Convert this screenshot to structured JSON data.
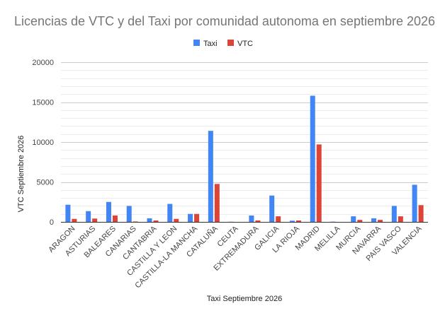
{
  "chart_data": {
    "type": "bar",
    "title": "Licencias de VTC y del Taxi por comunidad autonoma en septiembre 2026",
    "xlabel": "Taxi Septiembre 2026",
    "ylabel": "VTC Septiembre 2026",
    "ylim": [
      0,
      20000
    ],
    "yticks": [
      "0",
      "5000",
      "10000",
      "15000",
      "20000"
    ],
    "grid": true,
    "legend_position": "top",
    "categories": [
      "ARAGON",
      "ASTURIAS",
      "BALEARES",
      "CANARIAS",
      "CANTABRIA",
      "CASTILLA Y LEON",
      "CASTILLA-LA MANCHA",
      "CATALUÑA",
      "CEUTA",
      "EXTREMADURA",
      "GALICIA",
      "LA RIOJA",
      "MADRID",
      "MELILLA",
      "MURCIA",
      "NAVARRA",
      "PAIS VASCO",
      "VALENCIA"
    ],
    "series": [
      {
        "name": "Taxi",
        "color": "#4285f4",
        "values": [
          2150,
          1350,
          2500,
          2000,
          450,
          2250,
          1000,
          11400,
          20,
          800,
          3300,
          150,
          15800,
          30,
          700,
          450,
          2000,
          4650
        ]
      },
      {
        "name": "VTC",
        "color": "#db4437",
        "values": [
          380,
          420,
          800,
          50,
          180,
          380,
          1000,
          4750,
          0,
          180,
          700,
          180,
          9700,
          0,
          250,
          250,
          700,
          2100
        ]
      }
    ]
  }
}
